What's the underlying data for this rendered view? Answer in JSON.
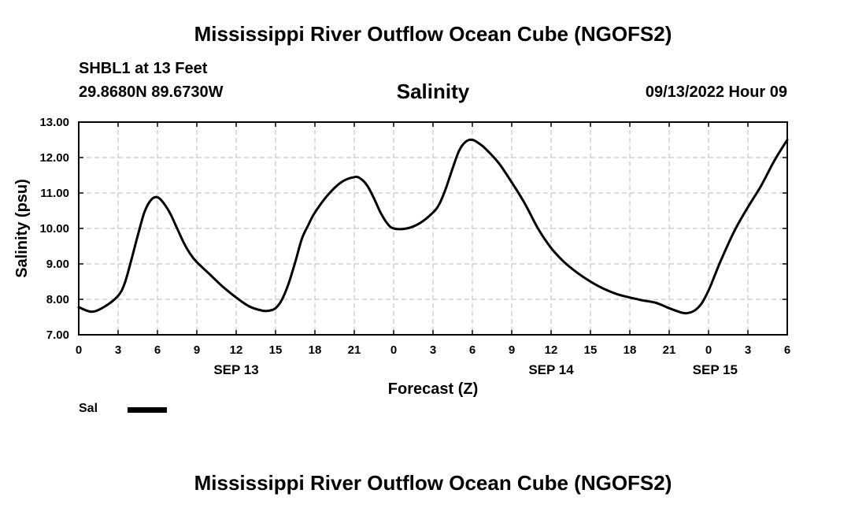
{
  "header": {
    "main_title": "Mississippi River Outflow Ocean Cube (NGOFS2)",
    "station": "SHBL1 at 13 Feet",
    "coords": "29.8680N  89.6730W",
    "subtitle": "Salinity",
    "datetime": "09/13/2022 Hour 09"
  },
  "legend": {
    "label": "Sal"
  },
  "footer": {
    "title": "Mississippi River Outflow Ocean Cube (NGOFS2)"
  },
  "chart_data": {
    "type": "line",
    "title": "Salinity",
    "xlabel": "Forecast (Z)",
    "ylabel": "Salinity (psu)",
    "xlim": [
      0,
      54
    ],
    "ylim": [
      7,
      13
    ],
    "yticks": [
      7,
      8,
      9,
      10,
      11,
      12,
      13
    ],
    "ytick_labels": [
      "7.00",
      "8.00",
      "9.00",
      "10.00",
      "11.00",
      "12.00",
      "13.00"
    ],
    "xticks": [
      0,
      3,
      6,
      9,
      12,
      15,
      18,
      21,
      24,
      27,
      30,
      33,
      36,
      39,
      42,
      45,
      48,
      51,
      54
    ],
    "xtick_labels": [
      "0",
      "3",
      "6",
      "9",
      "12",
      "15",
      "18",
      "21",
      "0",
      "3",
      "6",
      "9",
      "12",
      "15",
      "18",
      "21",
      "0",
      "3",
      "6"
    ],
    "date_labels": [
      {
        "x": 12,
        "label": "SEP 13"
      },
      {
        "x": 36,
        "label": "SEP 14"
      },
      {
        "x": 48.5,
        "label": "SEP 15"
      }
    ],
    "grid": true,
    "series": [
      {
        "name": "Sal",
        "x": [
          0,
          1,
          2,
          3,
          3.5,
          4,
          4.5,
          5,
          5.5,
          6,
          6.5,
          7,
          7.5,
          8,
          8.5,
          9,
          10,
          11,
          12,
          13,
          14,
          14.5,
          15,
          15.5,
          16,
          16.5,
          17,
          17.5,
          18,
          19,
          20,
          21,
          21.5,
          22,
          22.5,
          23,
          23.5,
          24,
          25,
          26,
          27,
          27.5,
          28,
          28.5,
          29,
          29.5,
          30,
          30.5,
          31,
          32,
          33,
          34,
          35,
          36,
          37,
          38,
          39,
          40,
          41,
          42,
          43,
          44,
          45,
          46,
          46.5,
          47,
          47.5,
          48,
          48.5,
          49,
          50,
          51,
          52,
          53,
          54
        ],
        "values": [
          7.78,
          7.65,
          7.8,
          8.1,
          8.45,
          9.1,
          9.8,
          10.45,
          10.8,
          10.88,
          10.7,
          10.4,
          10.0,
          9.6,
          9.28,
          9.05,
          8.7,
          8.35,
          8.05,
          7.8,
          7.68,
          7.68,
          7.75,
          8.0,
          8.45,
          9.05,
          9.7,
          10.1,
          10.45,
          10.95,
          11.3,
          11.45,
          11.4,
          11.2,
          10.85,
          10.45,
          10.15,
          10.0,
          10.0,
          10.15,
          10.45,
          10.7,
          11.15,
          11.7,
          12.2,
          12.45,
          12.5,
          12.4,
          12.25,
          11.85,
          11.3,
          10.7,
          10.0,
          9.45,
          9.05,
          8.75,
          8.5,
          8.3,
          8.15,
          8.05,
          7.97,
          7.9,
          7.75,
          7.62,
          7.62,
          7.7,
          7.9,
          8.25,
          8.7,
          9.15,
          9.95,
          10.6,
          11.2,
          11.9,
          12.5
        ]
      }
    ]
  }
}
